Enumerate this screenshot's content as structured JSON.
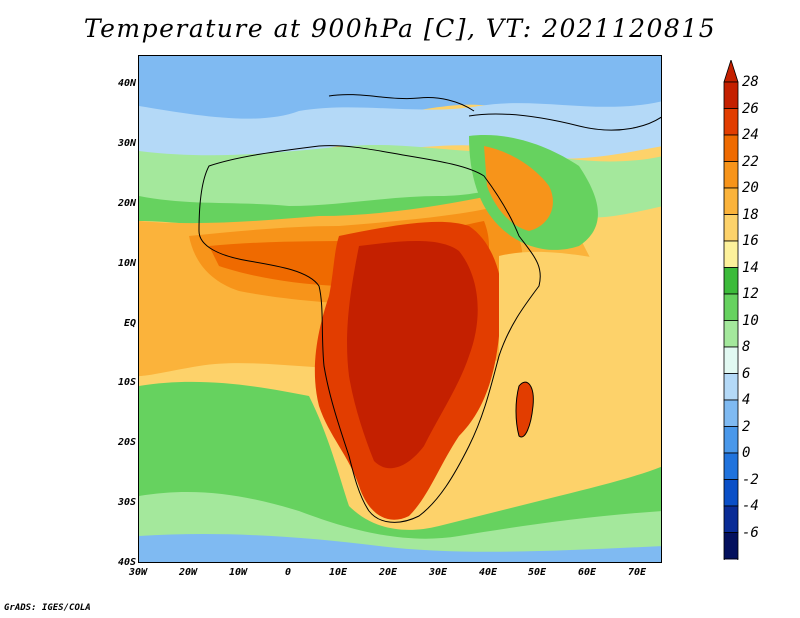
{
  "map": {
    "title": "Temperature at 900hPa [C], VT: 2021120815",
    "lat_labels": [
      "40N",
      "30N",
      "20N",
      "10N",
      "EQ",
      "10S",
      "20S",
      "30S",
      "40S"
    ],
    "lon_labels": [
      "30W",
      "20W",
      "10W",
      "0",
      "10E",
      "20E",
      "30E",
      "40E",
      "50E",
      "60E",
      "70E"
    ],
    "colorbar": {
      "labels": [
        "28",
        "26",
        "24",
        "22",
        "20",
        "18",
        "16",
        "14",
        "12",
        "10",
        "8",
        "6",
        "4",
        "2",
        "0",
        "-2",
        "-4",
        "-6"
      ],
      "colors": [
        "#c42000",
        "#e23d00",
        "#ef6a00",
        "#f7941a",
        "#fbb33b",
        "#fdd26a",
        "#fdf19b",
        "#3cbb3a",
        "#66d25f",
        "#a4e89c",
        "#e2f9f2",
        "#b4d9f7",
        "#7fbaf2",
        "#4a98ea",
        "#2073dd",
        "#0a4fc7",
        "#0a2c96",
        "#04115e"
      ]
    },
    "credit": "GrADS: IGES/COLA"
  }
}
